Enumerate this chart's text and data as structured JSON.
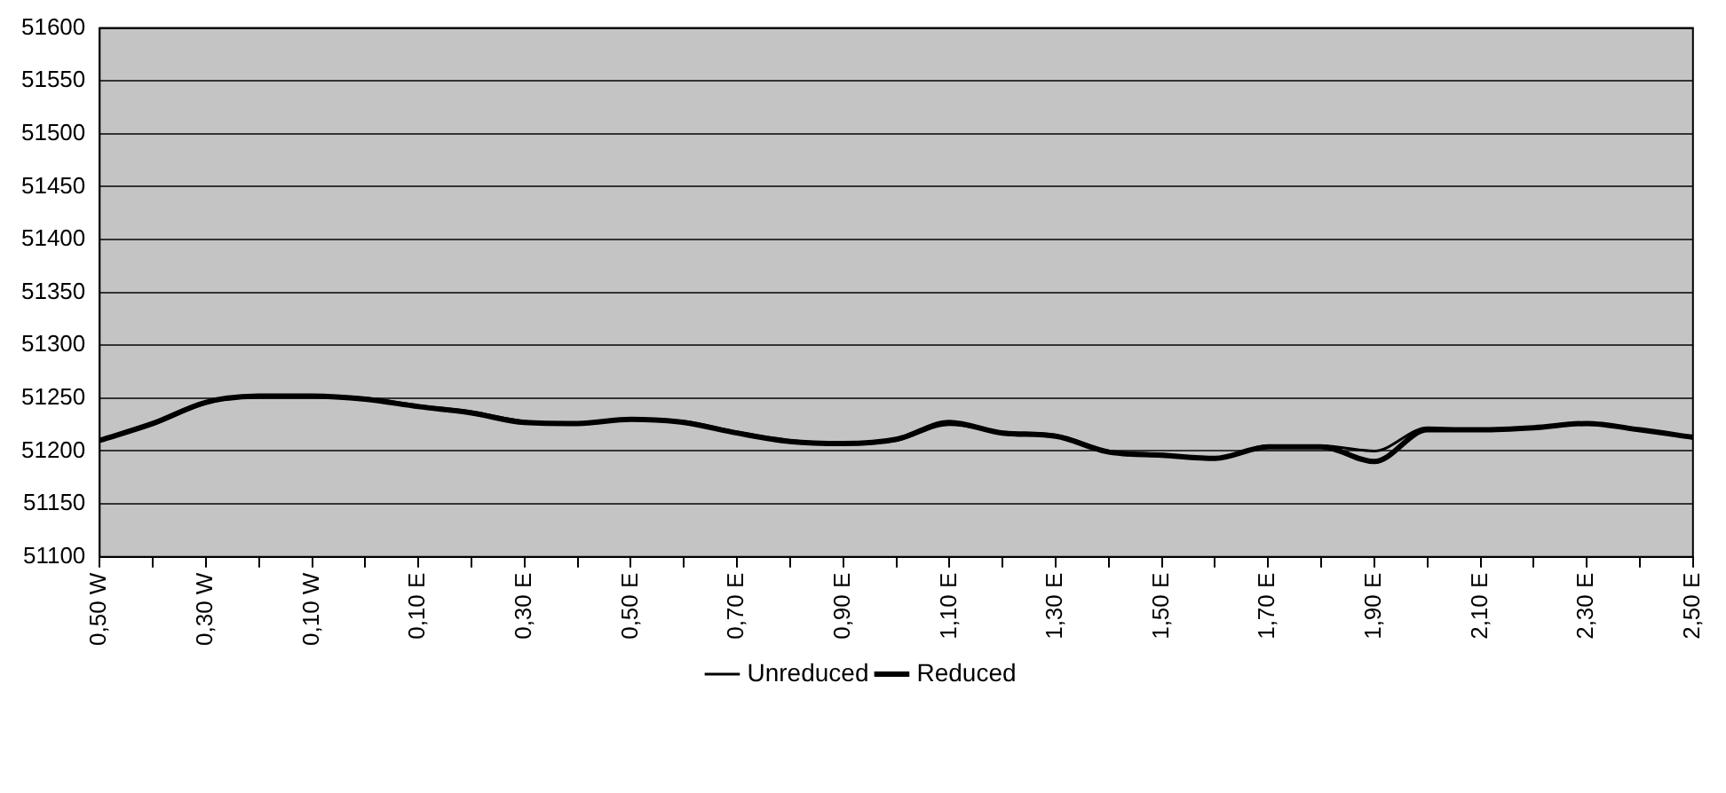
{
  "chart_data": {
    "type": "line",
    "categories": [
      "0,50 W",
      null,
      "0,30 W",
      null,
      "0,10 W",
      null,
      "0,10 E",
      null,
      "0,30 E",
      null,
      "0,50 E",
      null,
      "0,70 E",
      null,
      "0,90 E",
      null,
      "1,10 E",
      null,
      "1,30 E",
      null,
      "1,50 E",
      null,
      "1,70 E",
      null,
      "1,90 E",
      null,
      "2,10 E",
      null,
      "2,30 E",
      null,
      "2,50 E"
    ],
    "series": [
      {
        "name": "Unreduced",
        "color": "#000000",
        "values": [
          51210,
          51225,
          51245,
          51252,
          51252,
          51250,
          51243,
          51237,
          51228,
          51226,
          51230,
          51228,
          51218,
          51210,
          51207,
          51210,
          51225,
          51218,
          51215,
          51200,
          51197,
          51193,
          51205,
          51205,
          51200,
          51222,
          51220,
          51222,
          51226,
          51220,
          51213
        ]
      },
      {
        "name": "Reduced",
        "color": "#000000",
        "values": [
          51210,
          51226,
          51246,
          51252,
          51252,
          51249,
          51242,
          51236,
          51227,
          51226,
          51230,
          51227,
          51217,
          51209,
          51207,
          51211,
          51227,
          51217,
          51214,
          51199,
          51196,
          51193,
          51204,
          51204,
          51190,
          51220,
          51220,
          51222,
          51226,
          51220,
          51213
        ]
      }
    ],
    "ylim": [
      51100,
      51600
    ],
    "yticks": [
      51100,
      51150,
      51200,
      51250,
      51300,
      51350,
      51400,
      51450,
      51500,
      51550,
      51600
    ],
    "grid": "y",
    "legend": "bottom",
    "marker": "none",
    "line_style": "solid"
  }
}
